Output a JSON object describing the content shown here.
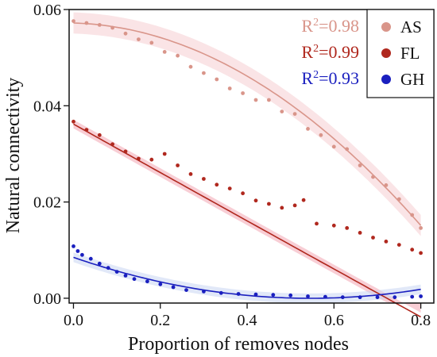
{
  "chart_data": {
    "type": "scatter",
    "title": "",
    "xlabel": "Proportion of removes nodes",
    "ylabel": "Natural connectivity",
    "xlim": [
      -0.01,
      0.83
    ],
    "ylim": [
      -0.001,
      0.06
    ],
    "xticks": [
      0.0,
      0.2,
      0.4,
      0.6,
      0.8
    ],
    "xtick_labels": [
      "0.0",
      "0.2",
      "0.4",
      "0.6",
      "0.8"
    ],
    "yticks": [
      0.0,
      0.02,
      0.04,
      0.06
    ],
    "ytick_labels": [
      "0.00",
      "0.02",
      "0.04",
      "0.06"
    ],
    "legend_position": "top-right",
    "grid": false,
    "series": [
      {
        "name": "AS",
        "color": "#d9958a",
        "band_color": "#f6cdd2",
        "r2": "0.98",
        "fit": [
          0.0572,
          -0.0026,
          -0.0625
        ],
        "band_halfwidth": 0.0022,
        "points": [
          [
            0.0,
            0.0576
          ],
          [
            0.03,
            0.0572
          ],
          [
            0.06,
            0.0568
          ],
          [
            0.09,
            0.0562
          ],
          [
            0.12,
            0.055
          ],
          [
            0.15,
            0.0538
          ],
          [
            0.18,
            0.0531
          ],
          [
            0.21,
            0.0512
          ],
          [
            0.24,
            0.0504
          ],
          [
            0.27,
            0.0481
          ],
          [
            0.3,
            0.0468
          ],
          [
            0.33,
            0.0455
          ],
          [
            0.36,
            0.0436
          ],
          [
            0.39,
            0.0426
          ],
          [
            0.42,
            0.0412
          ],
          [
            0.45,
            0.0412
          ],
          [
            0.48,
            0.0388
          ],
          [
            0.51,
            0.0383
          ],
          [
            0.54,
            0.0352
          ],
          [
            0.57,
            0.0339
          ],
          [
            0.6,
            0.0315
          ],
          [
            0.63,
            0.031
          ],
          [
            0.66,
            0.0276
          ],
          [
            0.69,
            0.0252
          ],
          [
            0.72,
            0.0235
          ],
          [
            0.75,
            0.0206
          ],
          [
            0.78,
            0.0173
          ],
          [
            0.8,
            0.0146
          ]
        ]
      },
      {
        "name": "FL",
        "color": "#b0281e",
        "band_color": "#f2a5b2",
        "r2": "0.99",
        "fit": [
          0.0362,
          -0.0505,
          0.0005
        ],
        "band_halfwidth": 0.0009,
        "points": [
          [
            0.0,
            0.0367
          ],
          [
            0.03,
            0.035
          ],
          [
            0.06,
            0.0339
          ],
          [
            0.09,
            0.032
          ],
          [
            0.12,
            0.0305
          ],
          [
            0.15,
            0.029
          ],
          [
            0.18,
            0.0288
          ],
          [
            0.21,
            0.03
          ],
          [
            0.24,
            0.0276
          ],
          [
            0.27,
            0.0258
          ],
          [
            0.3,
            0.0248
          ],
          [
            0.33,
            0.0236
          ],
          [
            0.36,
            0.0228
          ],
          [
            0.39,
            0.0218
          ],
          [
            0.42,
            0.0203
          ],
          [
            0.45,
            0.0196
          ],
          [
            0.48,
            0.0188
          ],
          [
            0.51,
            0.0193
          ],
          [
            0.53,
            0.0204
          ],
          [
            0.56,
            0.0155
          ],
          [
            0.6,
            0.0151
          ],
          [
            0.63,
            0.0146
          ],
          [
            0.66,
            0.0136
          ],
          [
            0.69,
            0.0126
          ],
          [
            0.72,
            0.0118
          ],
          [
            0.75,
            0.0111
          ],
          [
            0.78,
            0.0101
          ],
          [
            0.8,
            0.0094
          ]
        ]
      },
      {
        "name": "GH",
        "color": "#1a1fbf",
        "band_color": "#c8d6f2",
        "r2": "0.93",
        "fit": [
          0.0085,
          -0.0312,
          0.0286
        ],
        "band_halfwidth": 0.001,
        "points": [
          [
            0.0,
            0.0108
          ],
          [
            0.01,
            0.0098
          ],
          [
            0.02,
            0.009
          ],
          [
            0.04,
            0.0082
          ],
          [
            0.06,
            0.0072
          ],
          [
            0.08,
            0.0063
          ],
          [
            0.1,
            0.0055
          ],
          [
            0.12,
            0.0047
          ],
          [
            0.14,
            0.004
          ],
          [
            0.17,
            0.0035
          ],
          [
            0.2,
            0.0029
          ],
          [
            0.23,
            0.0023
          ],
          [
            0.26,
            0.0017
          ],
          [
            0.3,
            0.0014
          ],
          [
            0.34,
            0.0011
          ],
          [
            0.38,
            0.0009
          ],
          [
            0.42,
            0.0008
          ],
          [
            0.46,
            0.0007
          ],
          [
            0.5,
            0.0006
          ],
          [
            0.54,
            0.0004
          ],
          [
            0.58,
            0.0003
          ],
          [
            0.62,
            0.0002
          ],
          [
            0.66,
            0.0002
          ],
          [
            0.7,
            0.0002
          ],
          [
            0.74,
            0.0002
          ],
          [
            0.78,
            0.0003
          ],
          [
            0.8,
            0.0004
          ]
        ]
      }
    ]
  }
}
